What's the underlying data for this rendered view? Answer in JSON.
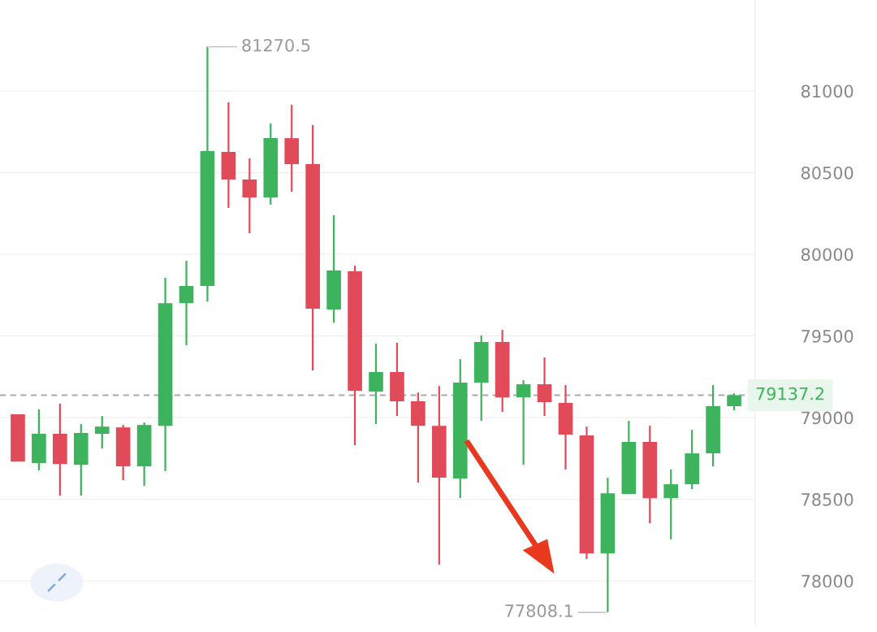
{
  "chart_data": {
    "type": "candlestick",
    "categories": [
      null,
      null,
      null,
      null,
      null,
      null,
      null,
      null,
      null,
      null,
      null,
      null,
      null,
      null,
      null,
      null,
      null,
      null,
      null,
      null,
      null,
      null,
      null,
      null,
      null,
      null,
      null,
      null,
      null,
      null,
      null,
      null,
      null,
      null,
      null
    ],
    "ohlc": [
      [
        79020,
        79020,
        78731,
        78731
      ],
      [
        78721,
        79050,
        78677,
        78901
      ],
      [
        78901,
        79085,
        78522,
        78716
      ],
      [
        78711,
        78960,
        78522,
        78906
      ],
      [
        78901,
        79010,
        78811,
        78945
      ],
      [
        78940,
        78955,
        78617,
        78702
      ],
      [
        78702,
        78970,
        78582,
        78955
      ],
      [
        78950,
        79856,
        78672,
        79701
      ],
      [
        79701,
        79960,
        79443,
        79806
      ],
      [
        79806,
        81270.5,
        79711,
        80632
      ],
      [
        80627,
        80930,
        80284,
        80458
      ],
      [
        80458,
        80587,
        80129,
        80348
      ],
      [
        80348,
        80801,
        80304,
        80711
      ],
      [
        80711,
        80915,
        80383,
        80552
      ],
      [
        80552,
        80791,
        79289,
        79667
      ],
      [
        79662,
        80239,
        79582,
        79901
      ],
      [
        79896,
        79930,
        78831,
        79164
      ],
      [
        79159,
        79453,
        78960,
        79279
      ],
      [
        79279,
        79458,
        79010,
        79100
      ],
      [
        79100,
        79154,
        78602,
        78950
      ],
      [
        78950,
        79194,
        78100,
        78632
      ],
      [
        78627,
        79358,
        78508,
        79214
      ],
      [
        79214,
        79503,
        78980,
        79463
      ],
      [
        79463,
        79537,
        79035,
        79124
      ],
      [
        79124,
        79229,
        78711,
        79204
      ],
      [
        79204,
        79368,
        79010,
        79095
      ],
      [
        79090,
        79199,
        78682,
        78896
      ],
      [
        78891,
        78945,
        78134,
        78169
      ],
      [
        78169,
        78632,
        77808.1,
        78537
      ],
      [
        78532,
        78980,
        78532,
        78851
      ],
      [
        78851,
        78950,
        78353,
        78507
      ],
      [
        78507,
        78682,
        78254,
        78592
      ],
      [
        78592,
        78925,
        78562,
        78781
      ],
      [
        78781,
        79199,
        78701,
        79070
      ],
      [
        79070,
        79149,
        79045,
        79137.2
      ]
    ],
    "colors": [
      "#e04a59",
      "#3cb35c",
      "#e04a59",
      "#3cb35c",
      "#3cb35c",
      "#e04a59",
      "#3cb35c",
      "#3cb35c",
      "#3cb35c",
      "#3cb35c",
      "#e04a59",
      "#e04a59",
      "#3cb35c",
      "#e04a59",
      "#e04a59",
      "#3cb35c",
      "#e04a59",
      "#3cb35c",
      "#e04a59",
      "#e04a59",
      "#e04a59",
      "#3cb35c",
      "#3cb35c",
      "#e04a59",
      "#3cb35c",
      "#e04a59",
      "#e04a59",
      "#e04a59",
      "#3cb35c",
      "#3cb35c",
      "#e04a59",
      "#3cb35c",
      "#3cb35c",
      "#3cb35c",
      "#3cb35c"
    ],
    "ylim": [
      77726,
      81557
    ],
    "yticks": [
      78000,
      78500,
      79000,
      79500,
      80000,
      80500,
      81000
    ],
    "tick_labels": "y",
    "grid": "y",
    "ref_lines": [
      {
        "axis": "y",
        "value": 79137.2,
        "label": "79137.2",
        "color": "#aaaaaa",
        "line_style": "dashed"
      }
    ],
    "annotations": [
      "81270.5",
      "77808.1"
    ]
  }
}
